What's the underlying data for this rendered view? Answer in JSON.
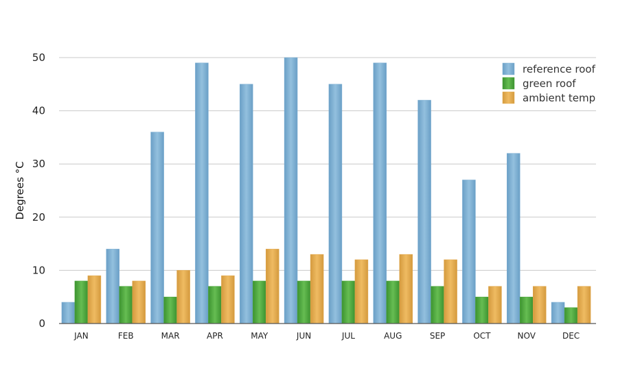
{
  "chart_data": {
    "type": "bar",
    "title": "",
    "xlabel": "",
    "ylabel": "Degrees °C",
    "ylim": [
      0,
      50
    ],
    "yticks": [
      0,
      10,
      20,
      30,
      40,
      50
    ],
    "grid": true,
    "legend_position": "top-right",
    "categories": [
      "JAN",
      "FEB",
      "MAR",
      "APR",
      "MAY",
      "JUN",
      "JUL",
      "AUG",
      "SEP",
      "OCT",
      "NOV",
      "DEC"
    ],
    "series": [
      {
        "name": "reference roof",
        "color": "#7fb0d4",
        "values": [
          4,
          14,
          36,
          49,
          45,
          50,
          45,
          49,
          42,
          27,
          32,
          4
        ]
      },
      {
        "name": "green roof",
        "color": "#4ea83e",
        "values": [
          8,
          7,
          5,
          7,
          8,
          8,
          8,
          8,
          7,
          5,
          5,
          3
        ]
      },
      {
        "name": "ambient temp",
        "color": "#e3a94e",
        "values": [
          9,
          8,
          10,
          9,
          14,
          13,
          12,
          13,
          12,
          7,
          7,
          7
        ]
      }
    ]
  }
}
